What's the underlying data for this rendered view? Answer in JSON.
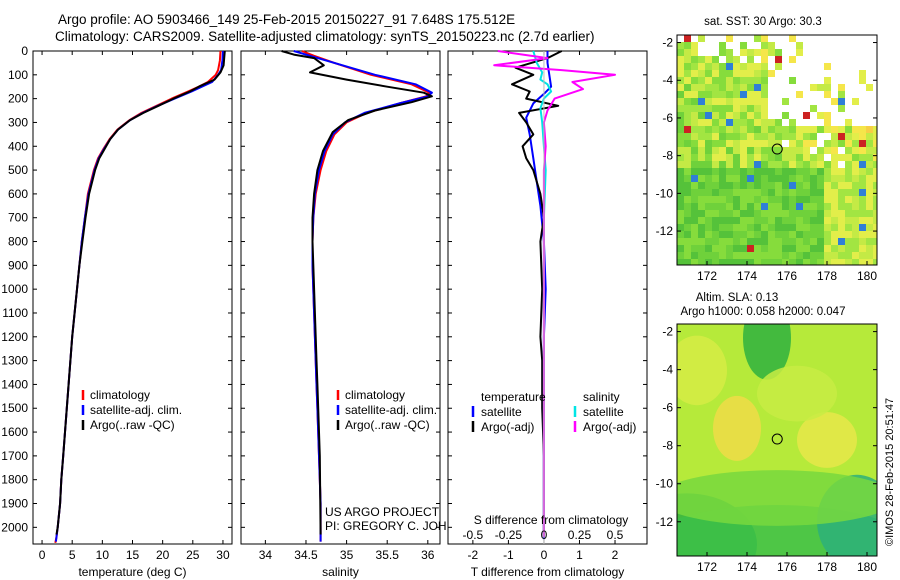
{
  "title": {
    "line1": "Argo profile: AO 5903466_149 25-Feb-2015 20150227_91 7.648S 175.512E",
    "line2": "Climatology: CARS2009. Satellite-adjusted climatology: synTS_20150223.nc (2.7d earlier)"
  },
  "colors": {
    "climatology": "#ff0000",
    "satellite": "#0000ff",
    "argo": "#000000",
    "sal_satellite": "#00e5e5",
    "sal_argo": "#ff00ff"
  },
  "depth_axis": {
    "ticks": [
      "0",
      "100",
      "200",
      "300",
      "400",
      "500",
      "600",
      "700",
      "800",
      "900",
      "1000",
      "1100",
      "1200",
      "1300",
      "1400",
      "1500",
      "1600",
      "1700",
      "1800",
      "1900",
      "2000"
    ],
    "ylim": [
      0,
      2070
    ]
  },
  "chart_data": [
    {
      "type": "line",
      "id": "temperature",
      "xlabel": "temperature (deg C)",
      "xlim": [
        -1.5,
        31.5
      ],
      "xticks": [
        "0",
        "5",
        "10",
        "15",
        "20",
        "25",
        "30"
      ],
      "legend": [
        "climatology",
        "satellite-adj. clim.",
        "Argo(..raw -QC)"
      ],
      "series": [
        {
          "name": "climatology",
          "color": "climatology",
          "x": [
            29.6,
            29.5,
            29.2,
            28.8,
            27.5,
            26.0,
            24.2,
            21.5,
            19.0,
            16.5,
            14.5,
            12.5,
            11.2,
            10.2,
            9.3,
            8.6,
            7.6,
            7.1,
            6.6,
            6.2,
            5.8,
            5.4,
            5.0,
            4.7,
            4.4,
            4.1,
            3.8,
            3.5,
            3.2,
            3.0,
            2.8,
            2.6,
            2.4,
            2.2
          ],
          "y": [
            0,
            40,
            80,
            100,
            130,
            150,
            170,
            200,
            230,
            260,
            290,
            330,
            370,
            410,
            450,
            500,
            600,
            700,
            800,
            900,
            1000,
            1100,
            1200,
            1300,
            1400,
            1500,
            1600,
            1700,
            1800,
            1900,
            1950,
            2000,
            2040,
            2065
          ]
        },
        {
          "name": "satellite",
          "color": "satellite",
          "x": [
            30.0,
            29.9,
            29.7,
            29.2,
            28.2,
            26.5,
            24.8,
            22.0,
            19.2,
            16.7,
            14.6,
            12.6,
            11.3,
            10.3,
            9.4,
            8.7,
            7.7,
            7.1,
            6.6,
            6.2,
            5.8,
            5.4,
            5.0,
            4.7,
            4.4,
            4.1,
            3.8,
            3.5,
            3.2,
            3.0,
            2.8,
            2.6,
            2.4,
            2.3
          ],
          "y": [
            0,
            40,
            80,
            100,
            130,
            150,
            170,
            200,
            230,
            260,
            290,
            330,
            370,
            410,
            450,
            500,
            600,
            700,
            800,
            900,
            1000,
            1100,
            1200,
            1300,
            1400,
            1500,
            1600,
            1700,
            1800,
            1900,
            1950,
            2000,
            2040,
            2060
          ]
        },
        {
          "name": "Argo",
          "color": "argo",
          "x": [
            30.3,
            30.2,
            30.1,
            29.6,
            28.6,
            26.0,
            24.5,
            21.8,
            19.3,
            16.8,
            14.6,
            12.6,
            11.3,
            10.4,
            9.5,
            8.8,
            7.8,
            7.2,
            6.7,
            6.2,
            5.8,
            5.4,
            5.0,
            4.7,
            4.4,
            4.1,
            3.8,
            3.5,
            3.2,
            3.0,
            2.8,
            2.6,
            2.4
          ],
          "y": [
            0,
            30,
            60,
            90,
            120,
            150,
            170,
            200,
            230,
            260,
            290,
            330,
            370,
            410,
            450,
            500,
            600,
            700,
            800,
            900,
            1000,
            1100,
            1200,
            1300,
            1400,
            1500,
            1600,
            1700,
            1800,
            1900,
            1950,
            2000,
            2030
          ]
        }
      ]
    },
    {
      "type": "line",
      "id": "salinity",
      "xlabel": "salinity",
      "xlim": [
        33.7,
        36.15
      ],
      "xticks": [
        "34",
        "34.5",
        "35",
        "35.5",
        "36"
      ],
      "legend": [
        "climatology",
        "satellite-adj. clim.",
        "Argo(..raw -QC)"
      ],
      "series": [
        {
          "name": "climatology",
          "color": "climatology",
          "x": [
            34.45,
            34.6,
            34.85,
            35.3,
            35.8,
            36.02,
            35.98,
            35.65,
            35.25,
            35.0,
            34.85,
            34.75,
            34.68,
            34.62,
            34.59,
            34.58,
            34.58,
            34.59,
            34.6,
            34.61,
            34.62,
            34.63,
            34.64,
            34.65,
            34.66,
            34.67,
            34.68,
            34.68
          ],
          "y": [
            0,
            20,
            50,
            100,
            140,
            175,
            190,
            220,
            260,
            300,
            350,
            420,
            500,
            600,
            700,
            800,
            900,
            1000,
            1100,
            1200,
            1300,
            1400,
            1500,
            1600,
            1700,
            1800,
            1900,
            2060
          ]
        },
        {
          "name": "satellite",
          "color": "satellite",
          "x": [
            34.35,
            34.55,
            34.85,
            35.35,
            35.85,
            36.05,
            36.0,
            35.65,
            35.22,
            34.98,
            34.83,
            34.73,
            34.66,
            34.61,
            34.59,
            34.58,
            34.58,
            34.59,
            34.6,
            34.61,
            34.62,
            34.63,
            34.64,
            34.65,
            34.66,
            34.67,
            34.68,
            34.68
          ],
          "y": [
            0,
            20,
            50,
            100,
            140,
            175,
            190,
            220,
            260,
            300,
            350,
            420,
            500,
            600,
            700,
            800,
            900,
            1000,
            1100,
            1200,
            1300,
            1400,
            1500,
            1600,
            1700,
            1800,
            1900,
            2060
          ]
        },
        {
          "name": "Argo",
          "color": "argo",
          "x": [
            34.2,
            34.35,
            34.6,
            34.72,
            34.55,
            35.0,
            35.5,
            35.95,
            36.05,
            35.8,
            35.35,
            35.02,
            34.83,
            34.71,
            34.64,
            34.6,
            34.58,
            34.58,
            34.59,
            34.6,
            34.61,
            34.62,
            34.63,
            34.64,
            34.65,
            34.66,
            34.67,
            34.68
          ],
          "y": [
            0,
            15,
            30,
            60,
            90,
            120,
            150,
            175,
            190,
            215,
            250,
            290,
            340,
            420,
            500,
            600,
            700,
            800,
            900,
            1000,
            1100,
            1200,
            1300,
            1400,
            1500,
            1600,
            1700,
            2030
          ]
        }
      ]
    },
    {
      "type": "line",
      "id": "difference",
      "xlabel": "T difference from climatology",
      "xlabel_top": "S difference from climatology",
      "xlim": [
        -2.7,
        2.9
      ],
      "xticks": [
        "-2",
        "-1",
        "0",
        "1",
        "2"
      ],
      "xticks_top": [
        "-0.5",
        "-0.25",
        "0",
        "0.25",
        "0.5"
      ],
      "legend_headers": [
        "temperature",
        "salinity"
      ],
      "legend": [
        "satellite",
        "Argo(-adj)",
        "satellite",
        "Argo(-adj)"
      ],
      "series": [
        {
          "name": "T satellite",
          "color": "satellite",
          "x": [
            0.1,
            0.1,
            0.15,
            0.2,
            0.0,
            -0.3,
            -0.5,
            -0.4,
            -0.3,
            -0.2,
            -0.1,
            0.0,
            0.05,
            0.0,
            0.0,
            0.0,
            0.0,
            0.0,
            0.0,
            0.0
          ],
          "y": [
            0,
            50,
            100,
            150,
            180,
            220,
            280,
            350,
            450,
            550,
            650,
            800,
            1000,
            1200,
            1400,
            1600,
            1800,
            1900,
            2000,
            2050
          ]
        },
        {
          "name": "T Argo",
          "color": "argo",
          "x": [
            0.5,
            0.1,
            -0.8,
            -0.3,
            -0.9,
            -0.4,
            -0.5,
            0.4,
            -0.7,
            -0.5,
            -0.3,
            -0.6,
            -0.5,
            -0.3,
            -0.1,
            0.0,
            -0.1,
            -0.05,
            -0.1,
            -0.05,
            -0.05,
            0.0,
            0.0,
            0.0
          ],
          "y": [
            0,
            30,
            70,
            100,
            140,
            170,
            200,
            230,
            260,
            300,
            350,
            400,
            450,
            500,
            600,
            700,
            800,
            1000,
            1200,
            1300,
            1500,
            1700,
            1900,
            2040
          ]
        },
        {
          "name": "S satellite",
          "color": "sal_satellite",
          "x": [
            -0.3,
            -0.2,
            -0.05,
            -0.1,
            0.1,
            0.2,
            0.0,
            -0.1,
            -0.05,
            0.0,
            0.05,
            0.0,
            0.0,
            0.0,
            0.0,
            0.0,
            0.0,
            0.0,
            0.0
          ],
          "y": [
            0,
            50,
            90,
            120,
            140,
            170,
            200,
            240,
            300,
            400,
            500,
            700,
            900,
            1100,
            1300,
            1500,
            1700,
            1900,
            2040
          ]
        },
        {
          "name": "S Argo",
          "color": "sal_argo",
          "x": [
            -1.3,
            0.1,
            -1.4,
            0.5,
            2.0,
            0.8,
            1.1,
            0.3,
            0.1,
            0.0,
            0.05,
            0.0,
            0.0,
            0.0,
            0.0,
            0.0,
            0.0,
            0.0
          ],
          "y": [
            0,
            30,
            60,
            80,
            100,
            130,
            160,
            200,
            250,
            300,
            400,
            500,
            700,
            900,
            1100,
            1400,
            1700,
            2040
          ]
        }
      ]
    },
    {
      "type": "heatmap",
      "id": "sst_map",
      "title": "sat. SST: 30 Argo: 30.3",
      "xlim": [
        170.5,
        180.5
      ],
      "ylim": [
        -13.8,
        -1.6
      ],
      "xticks": [
        "172",
        "174",
        "176",
        "178",
        "180"
      ],
      "yticks": [
        "-2",
        "-4",
        "-6",
        "-8",
        "-10",
        "-12"
      ],
      "marker": {
        "lon": 175.512,
        "lat": -7.648
      }
    },
    {
      "type": "heatmap",
      "id": "sla_map",
      "title_lines": [
        "Altim. SLA: 0.13",
        "Argo h1000: 0.058 h2000: 0.047"
      ],
      "xlim": [
        170.5,
        180.5
      ],
      "ylim": [
        -13.8,
        -1.6
      ],
      "xticks": [
        "172",
        "174",
        "176",
        "178",
        "180"
      ],
      "yticks": [
        "-2",
        "-4",
        "-6",
        "-8",
        "-10",
        "-12"
      ],
      "marker": {
        "lon": 175.512,
        "lat": -7.648
      }
    }
  ],
  "project": {
    "line1": "US ARGO PROJECT",
    "line2": "PI: GREGORY C. JOHNSON"
  },
  "copyright": "©IMOS 28-Feb-2015 20:51:47"
}
